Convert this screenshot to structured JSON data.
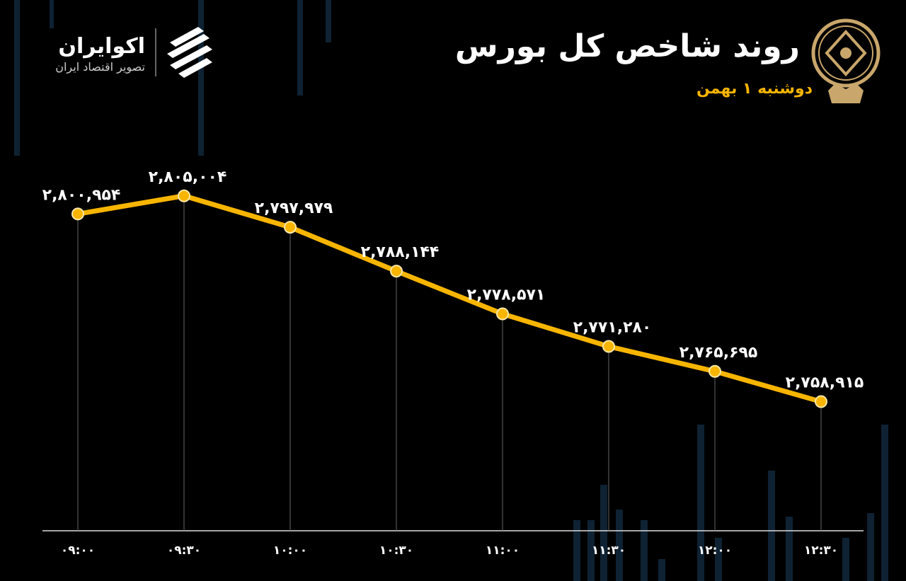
{
  "chart_data": {
    "type": "line",
    "title": "روند شاخص کل بورس",
    "subtitle": "دوشنبه ۱ بهمن",
    "brand": "اکوایران",
    "brand_tagline": "تصویر اقتصاد ایران",
    "categories": [
      "۰۹:۰۰",
      "۰۹:۳۰",
      "۱۰:۰۰",
      "۱۰:۳۰",
      "۱۱:۰۰",
      "۱۱:۳۰",
      "۱۲:۰۰",
      "۱۲:۳۰"
    ],
    "values": [
      2800954,
      2805004,
      2797979,
      2788144,
      2778571,
      2771280,
      2765695,
      2758915
    ],
    "value_labels": [
      "۲,۸۰۰,۹۵۴",
      "۲,۸۰۵,۰۰۴",
      "۲,۷۹۷,۹۷۹",
      "۲,۷۸۸,۱۴۴",
      "۲,۷۷۸,۵۷۱",
      "۲,۷۷۱,۲۸۰",
      "۲,۷۶۵,۶۹۵",
      "۲,۷۵۸,۹۱۵"
    ],
    "color": "#f7b500",
    "ylim": [
      2730000,
      2814000
    ]
  }
}
